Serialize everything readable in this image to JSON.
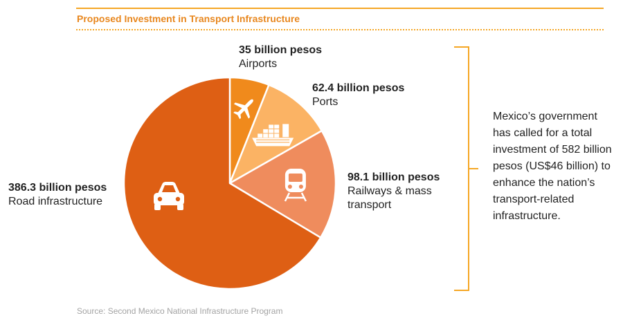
{
  "header": {
    "title": "Proposed Investment in Transport Infrastructure"
  },
  "chart_data": {
    "type": "pie",
    "unit": "billion pesos",
    "slices": [
      {
        "category": "Airports",
        "value": 35,
        "value_label": "35 billion pesos",
        "color": "#f08a1c",
        "icon": "airplane-icon"
      },
      {
        "category": "Ports",
        "value": 62.4,
        "value_label": "62.4 billion pesos",
        "color": "#fbb364",
        "icon": "ship-icon"
      },
      {
        "category": "Railways & mass transport",
        "value": 98.1,
        "value_label": "98.1 billion pesos",
        "color": "#ef8c5d",
        "icon": "train-icon",
        "category_lines": [
          "Railways & mass",
          "transport"
        ]
      },
      {
        "category": "Road infrastructure",
        "value": 386.3,
        "value_label": "386.3 billion pesos",
        "color": "#de5f14",
        "icon": "car-icon"
      }
    ]
  },
  "note": {
    "text": "Mexico’s government has called for a total investment of 582 billion pesos (US$46 billion) to enhance the nation’s transport-related infrastructure."
  },
  "source": {
    "text": "Source: Second Mexico National Infrastructure Program"
  }
}
